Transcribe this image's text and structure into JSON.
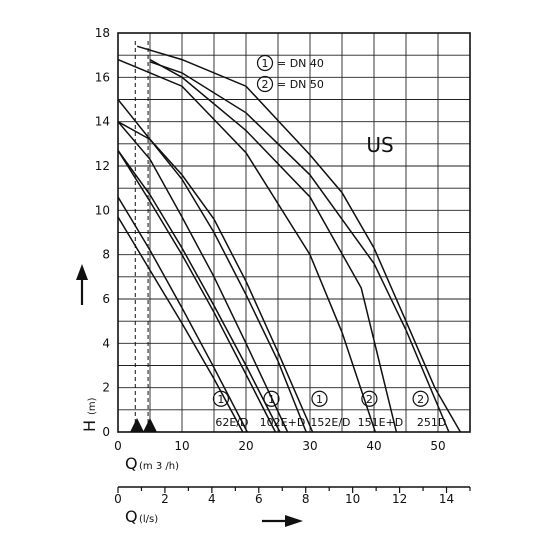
{
  "chart_data": {
    "type": "line",
    "title": "US",
    "ylabel": "H",
    "ylabel_unit": "(m)",
    "xlabel": "Q",
    "xlabel_unit": "(m 3 /h)",
    "x2label": "Q",
    "x2label_unit": "(l/s)",
    "xlim": [
      0,
      55
    ],
    "ylim": [
      0,
      18
    ],
    "x2lim": [
      0,
      15
    ],
    "grid": true,
    "y_ticks": [
      "0",
      "2",
      "4",
      "6",
      "8",
      "10",
      "12",
      "14",
      "16",
      "18"
    ],
    "y_tick_values": [
      0,
      2,
      4,
      6,
      8,
      10,
      12,
      14,
      16,
      18
    ],
    "x_ticks": [
      "0",
      "10",
      "20",
      "30",
      "40",
      "50"
    ],
    "x_tick_values": [
      0,
      10,
      20,
      30,
      40,
      50
    ],
    "x2_ticks": [
      "0",
      "2",
      "4",
      "6",
      "8",
      "10",
      "12",
      "14"
    ],
    "x2_tick_values": [
      0,
      2,
      4,
      6,
      8,
      10,
      12,
      14
    ],
    "legend": {
      "placement": "top-center",
      "items": [
        {
          "marker": "1",
          "text": "= DN 40"
        },
        {
          "marker": "2",
          "text": "= DN 50"
        }
      ]
    },
    "dashed_x": [
      2.7,
      4.7
    ],
    "series": [
      {
        "name": "62E/D",
        "marker": "1",
        "x": [
          0,
          5,
          10,
          15,
          19.5
        ],
        "y": [
          9.7,
          7.3,
          4.9,
          2.4,
          0
        ]
      },
      {
        "name": "62E/D",
        "marker": "1",
        "x": [
          0,
          5,
          10,
          15,
          20.2
        ],
        "y": [
          10.6,
          8.2,
          5.6,
          2.9,
          0
        ]
      },
      {
        "name": "102E+D",
        "marker": "1",
        "x": [
          0,
          5,
          10,
          15,
          20,
          25.3
        ],
        "y": [
          12.7,
          10.7,
          8.3,
          5.7,
          3.0,
          0
        ]
      },
      {
        "name": "102E+D",
        "marker": "1",
        "x": [
          0,
          5,
          10,
          15,
          20,
          26.5
        ],
        "y": [
          14.0,
          12.3,
          9.7,
          7.0,
          4.0,
          0
        ]
      },
      {
        "name": "152E/D",
        "marker": "1",
        "x": [
          0,
          5,
          10,
          15,
          20,
          25,
          29.4
        ],
        "y": [
          14.0,
          13.2,
          11.4,
          9.0,
          6.2,
          3.2,
          0
        ]
      },
      {
        "name": "152E/D",
        "marker": "1",
        "x": [
          0,
          5,
          10,
          15,
          20,
          25,
          30.4
        ],
        "y": [
          15.0,
          13.2,
          11.6,
          9.6,
          6.8,
          3.6,
          0
        ]
      },
      {
        "name": "151E+D",
        "marker": "2",
        "x": [
          0,
          10,
          20,
          30,
          35,
          40.2
        ],
        "y": [
          16.8,
          15.6,
          12.6,
          8.0,
          4.5,
          0
        ]
      },
      {
        "name": "251D",
        "marker": "2",
        "x": [
          3,
          10,
          20,
          30,
          35,
          40,
          45,
          49.5,
          53.5
        ],
        "y": [
          17.4,
          16.8,
          15.6,
          12.5,
          10.8,
          8.3,
          5.0,
          2.0,
          0
        ]
      },
      {
        "name": "251D",
        "marker": "2",
        "x": [
          5,
          10,
          20,
          30,
          40,
          45,
          51.7
        ],
        "y": [
          16.7,
          16.2,
          14.4,
          11.6,
          7.6,
          4.6,
          0
        ]
      },
      {
        "name": "102E+D",
        "marker": "1",
        "x": [
          0,
          5,
          10,
          15,
          20,
          24.6
        ],
        "y": [
          12.7,
          10.4,
          8.0,
          5.4,
          2.6,
          0
        ]
      },
      {
        "name": "151E+D",
        "marker": "2",
        "x": [
          5,
          10,
          20,
          30,
          38,
          43.5
        ],
        "y": [
          16.8,
          16.0,
          13.6,
          10.6,
          6.5,
          0
        ]
      }
    ],
    "bottom_labels": [
      "62E/D",
      "102E+D",
      "152E/D",
      "151E+D",
      "251D"
    ],
    "bottom_markers": [
      "1",
      "1",
      "1",
      "2",
      "2"
    ],
    "bottom_label_x": [
      17.8,
      25.7,
      33.2,
      41.0,
      49.0
    ]
  }
}
